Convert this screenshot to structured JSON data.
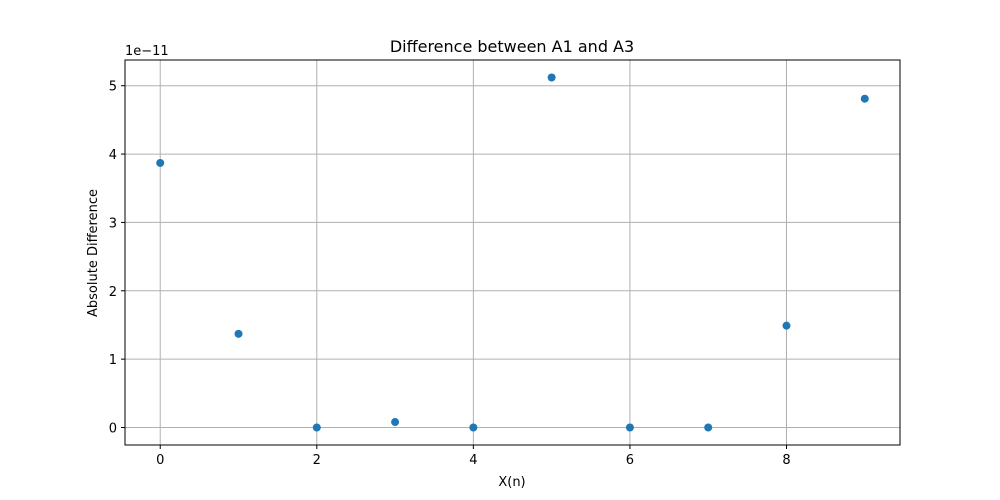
{
  "chart_data": {
    "type": "scatter",
    "title": "Difference between A1 and A3",
    "xlabel": "X(n)",
    "ylabel": "Absolute Difference",
    "y_offset_label": "1e−11",
    "y_scale_exponent": -11,
    "x": [
      0,
      1,
      2,
      3,
      4,
      5,
      6,
      7,
      8,
      9
    ],
    "y": [
      3.87e-11,
      1.37e-11,
      0.0,
      8e-13,
      0.0,
      5.12e-11,
      0.0,
      0.0,
      1.49e-11,
      4.81e-11
    ],
    "xlim": [
      -0.45,
      9.45
    ],
    "ylim": [
      -2.56e-12,
      5.376e-11
    ],
    "x_ticks": [
      0,
      2,
      4,
      6,
      8
    ],
    "x_tick_labels": [
      "0",
      "2",
      "4",
      "6",
      "8"
    ],
    "y_ticks": [
      0,
      1e-11,
      2e-11,
      3e-11,
      4e-11,
      5e-11
    ],
    "y_tick_labels": [
      "0",
      "1",
      "2",
      "3",
      "4",
      "5"
    ],
    "grid": true,
    "legend": "none",
    "marker_color": "#1f77b4",
    "grid_color": "#b0b0b0"
  }
}
